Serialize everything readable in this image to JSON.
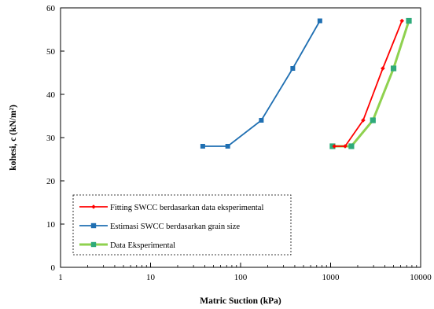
{
  "chart_data": {
    "type": "line",
    "xlabel": "Matric Suction (kPa)",
    "ylabel": "kohesi, c (kN/m²)",
    "xscale": "log",
    "xlim": [
      1,
      10000
    ],
    "ylim": [
      0,
      60
    ],
    "xticks": [
      1,
      10,
      100,
      1000,
      10000
    ],
    "xtick_labels": [
      "1",
      "10",
      "100",
      "1000",
      "10000"
    ],
    "yticks": [
      0,
      10,
      20,
      30,
      40,
      50,
      60
    ],
    "ytick_labels": [
      "0",
      "10",
      "20",
      "30",
      "40",
      "50",
      "60"
    ],
    "grid": false,
    "legend_position": "bottom-left inside plot, dashed border",
    "series": [
      {
        "name": "Fitting SWCC berdasarkan data eksperimental",
        "color": "#ff0000",
        "marker": "diamond",
        "x": [
          1100,
          1450,
          2300,
          3800,
          6200
        ],
        "y": [
          28,
          28,
          34,
          46,
          57
        ]
      },
      {
        "name": "Estimasi SWCC berdasarkan grain size",
        "color": "#1f6fb2",
        "marker": "square",
        "x": [
          38,
          72,
          170,
          380,
          760
        ],
        "y": [
          28,
          28,
          34,
          46,
          57
        ]
      },
      {
        "name": "Data Eksperimental",
        "color": "#8fd14f",
        "marker_color": "#2eaa7a",
        "marker": "square",
        "x": [
          1050,
          1700,
          2950,
          5000,
          7400
        ],
        "y": [
          28,
          28,
          34,
          46,
          57
        ]
      }
    ]
  }
}
